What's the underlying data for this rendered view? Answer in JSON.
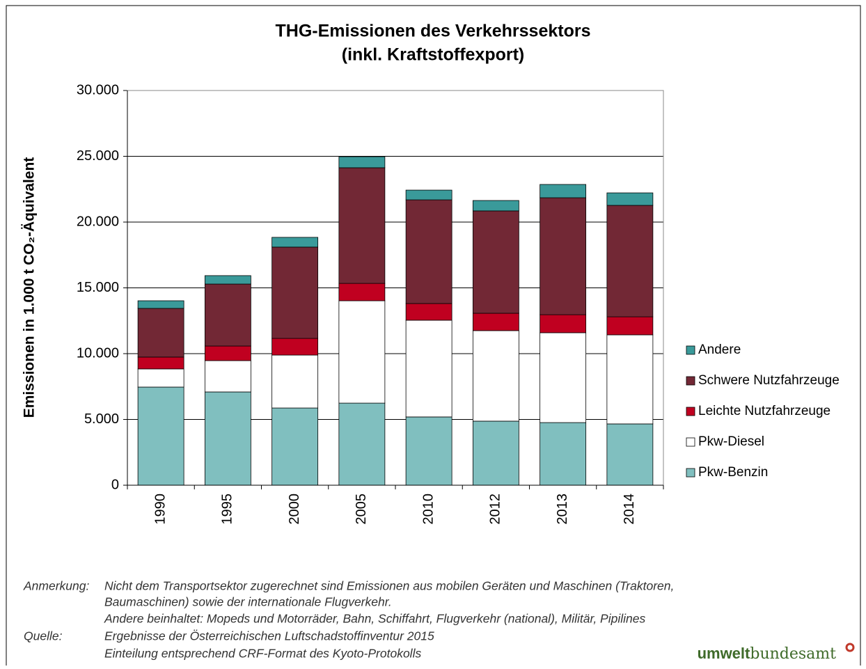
{
  "chart_data": {
    "type": "stacked-bar",
    "title": [
      "THG-Emissionen des Verkehrssektors",
      "(inkl. Kraftstoffexport)"
    ],
    "ylabel": "Emissionen in 1.000 t CO₂-Äquivalent",
    "categories": [
      "1990",
      "1995",
      "2000",
      "2005",
      "2010",
      "2012",
      "2013",
      "2014"
    ],
    "series": [
      {
        "name": "Pkw-Benzin",
        "color": "#80bfbf",
        "values": [
          7460,
          7090,
          5870,
          6240,
          5190,
          4870,
          4760,
          4660
        ]
      },
      {
        "name": "Pkw-Diesel",
        "color": "#ffffff",
        "values": [
          1380,
          2380,
          4020,
          7780,
          7350,
          6880,
          6830,
          6770
        ]
      },
      {
        "name": "Leichte Nutzfahrzeuge",
        "color": "#c00020",
        "values": [
          900,
          1110,
          1270,
          1320,
          1270,
          1320,
          1370,
          1370
        ]
      },
      {
        "name": "Schwere Nutzfahrzeuge",
        "color": "#722835",
        "values": [
          3700,
          4710,
          6940,
          8790,
          7880,
          7780,
          8890,
          8470
        ]
      },
      {
        "name": "Andere",
        "color": "#3a9a9a",
        "values": [
          580,
          640,
          740,
          840,
          740,
          790,
          1010,
          950
        ]
      }
    ],
    "ylim": [
      0,
      30000
    ],
    "yticks": [
      0,
      {
        "value": 5000,
        "label": "5.000"
      },
      {
        "value": 10000,
        "label": "10.000"
      },
      {
        "value": 15000,
        "label": "15.000"
      },
      {
        "value": 20000,
        "label": "20.000"
      },
      {
        "value": 25000,
        "label": "25.000"
      },
      {
        "value": 30000,
        "label": "30.000"
      }
    ],
    "grid": true,
    "legend": "right"
  },
  "notes": {
    "remark_label": "Anmerkung:",
    "remark": [
      "Nicht dem Transportsektor zugerechnet sind Emissionen aus mobilen Geräten und Maschinen (Traktoren,",
      "Baumaschinen) sowie der internationale Flugverkehr.",
      "Andere beinhaltet:  Mopeds und Motorräder, Bahn, Schiffahrt, Flugverkehr (national), Militär, Pipilines"
    ],
    "source_label": "Quelle:",
    "source": [
      "Ergebnisse der Österreichischen Luftschadstoffinventur 2015",
      "Einteilung entsprechend CRF-Format des Kyoto-Protokolls"
    ]
  },
  "logo": [
    "umwelt",
    "bundesamt"
  ]
}
